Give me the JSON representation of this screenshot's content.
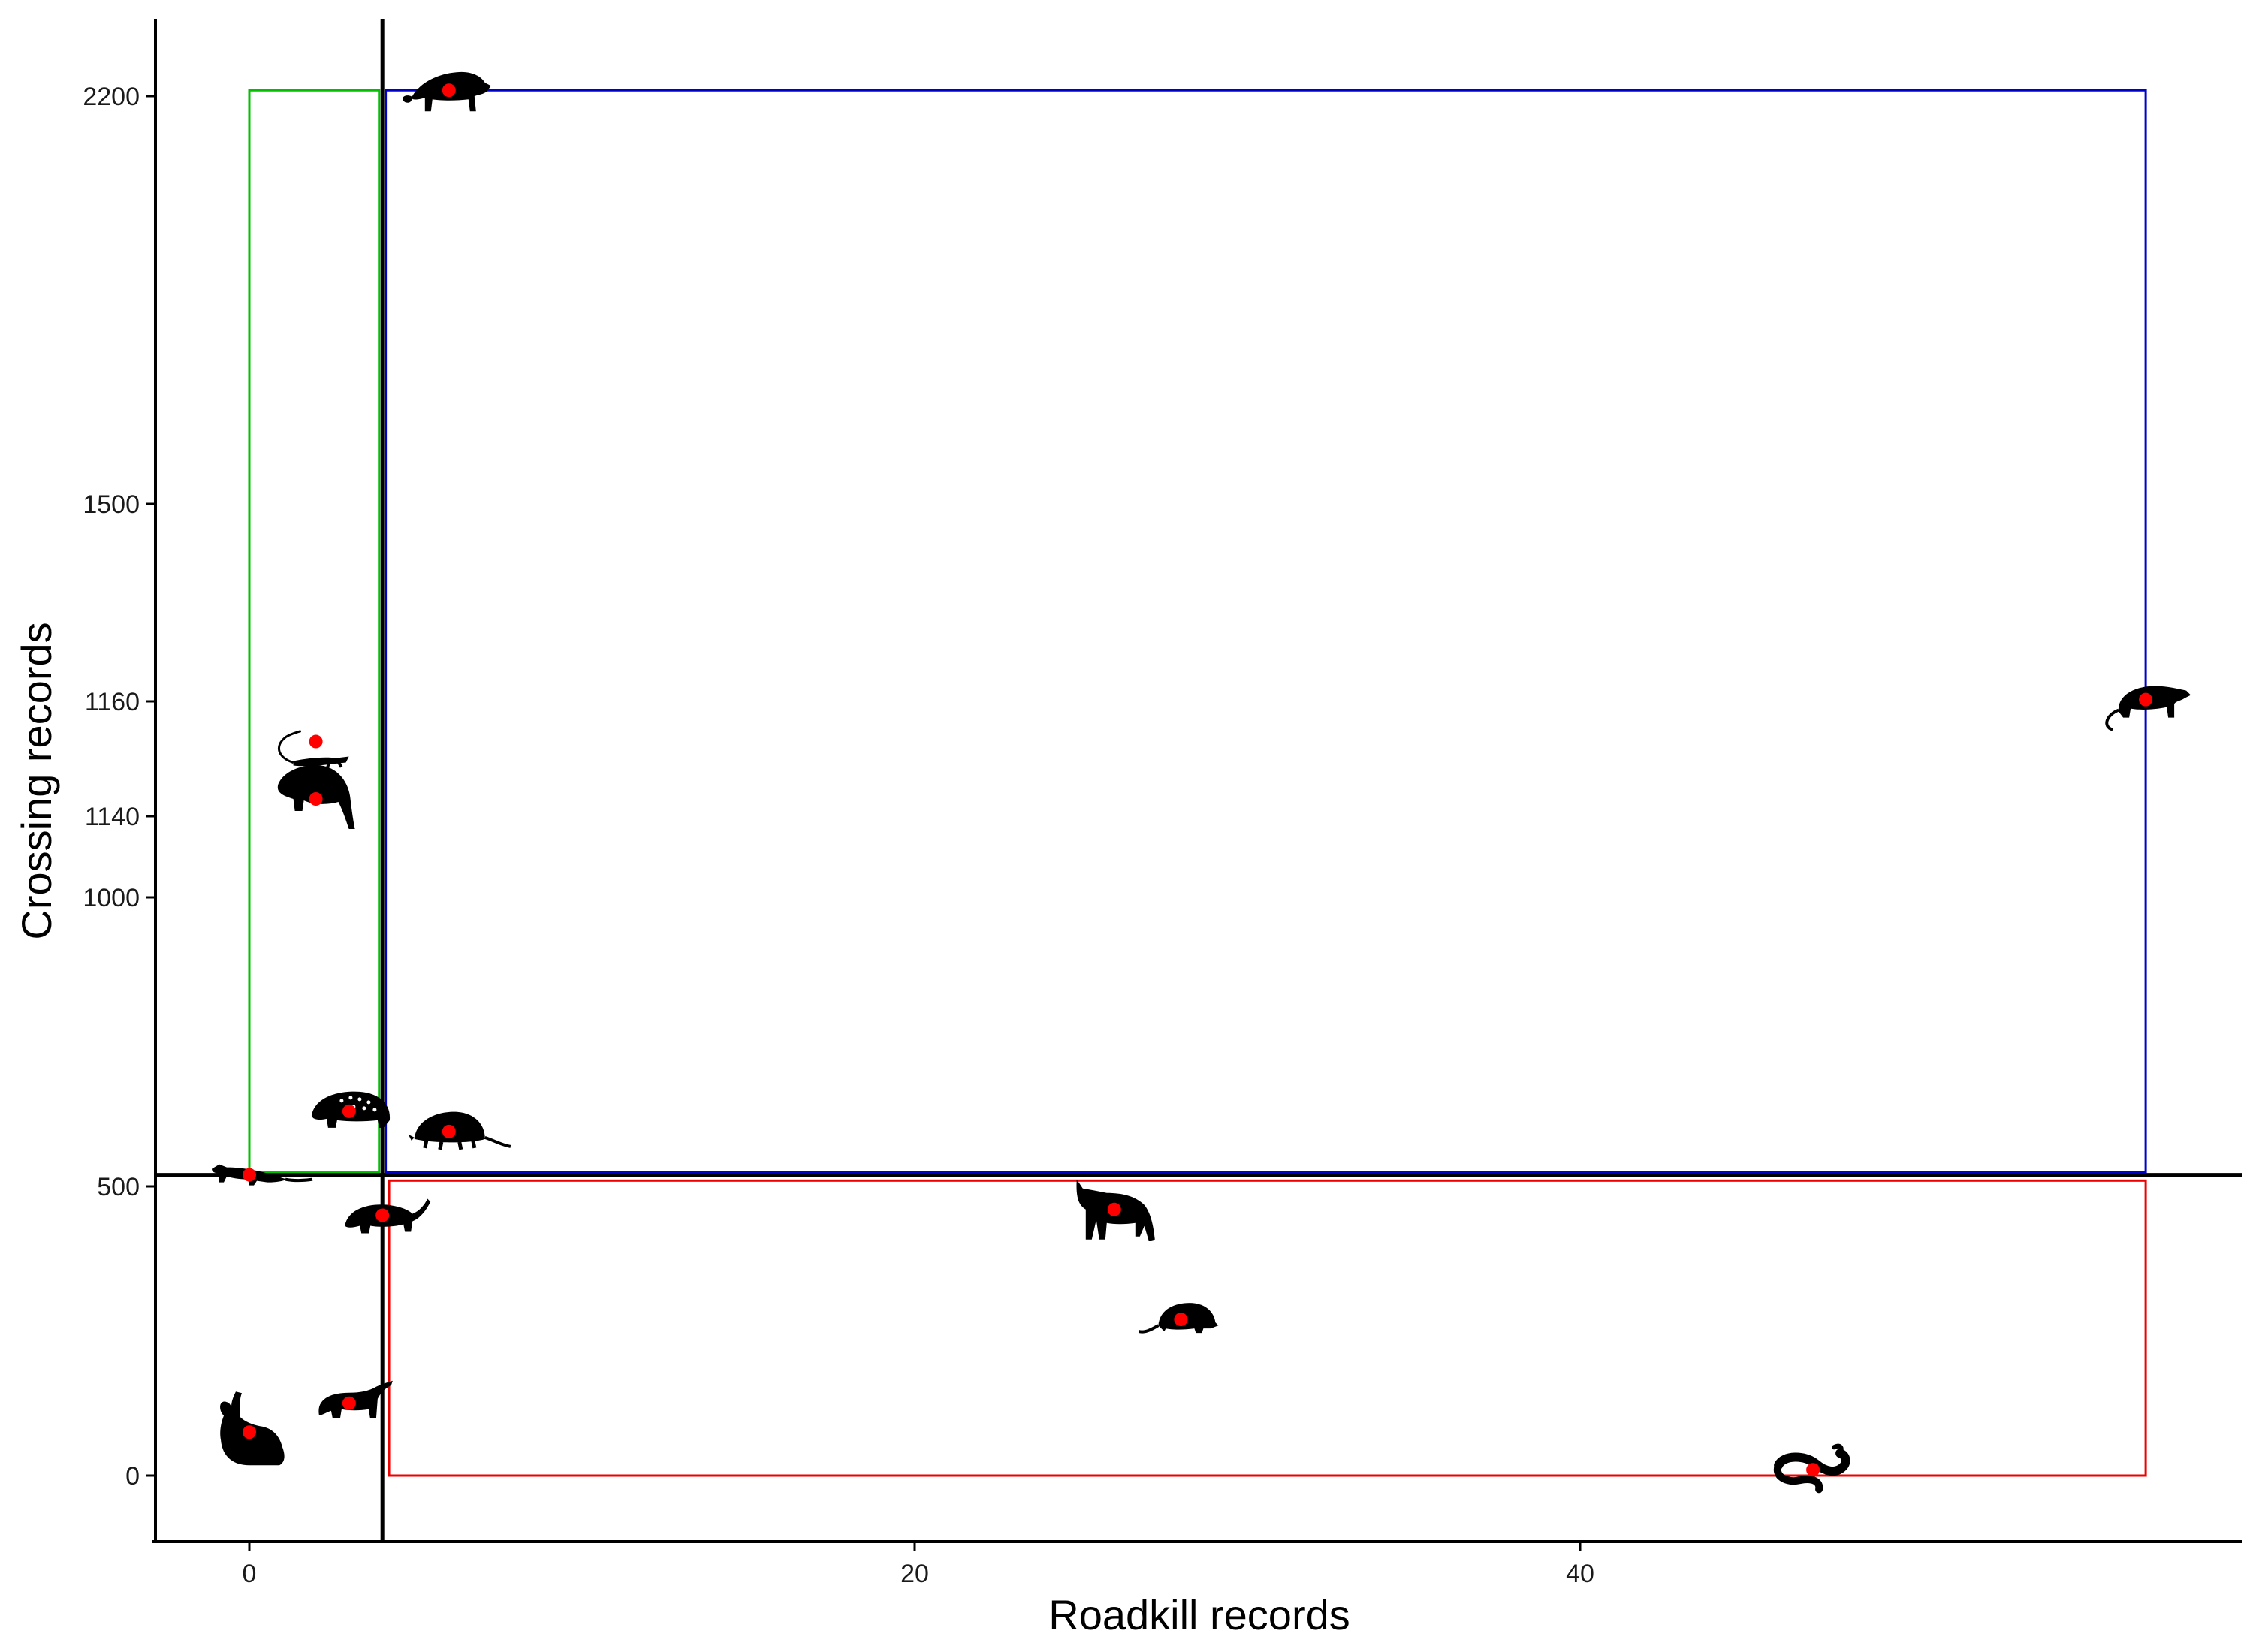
{
  "chart_data": {
    "type": "scatter",
    "title": "",
    "xlabel": "Roadkill records",
    "ylabel": "Crossing records",
    "xlim": [
      -1.4,
      59.8
    ],
    "x_ticks": [
      {
        "value": 0,
        "label": "0"
      },
      {
        "value": 20,
        "label": "20"
      },
      {
        "value": 40,
        "label": "40"
      }
    ],
    "y_ticks": [
      {
        "value": 0,
        "label": "0"
      },
      {
        "value": 500,
        "label": "500"
      },
      {
        "value": 1000,
        "label": "1000"
      },
      {
        "value": 1140,
        "label": "1140"
      },
      {
        "value": 1160,
        "label": "1160"
      },
      {
        "value": 1500,
        "label": "1500"
      },
      {
        "value": 2200,
        "label": "2200"
      }
    ],
    "y_scale_note": "piecewise: 0-500 linear, 500-1140 linear, 1140-1160 expanded, 1160-1500 linear, 1500-2200 compressed",
    "grid": false,
    "reference_lines": {
      "x": 4,
      "y": 520
    },
    "quadrants": [
      {
        "color": "#00c000",
        "x": [
          0,
          3.9
        ],
        "y": [
          525,
          2210
        ]
      },
      {
        "color": "#0000cc",
        "x": [
          4.1,
          57
        ],
        "y": [
          525,
          2210
        ]
      },
      {
        "color": "#ee0000",
        "x": [
          4.2,
          57
        ],
        "y": [
          0,
          510
        ]
      }
    ],
    "points": [
      {
        "x": 6,
        "y": 2210,
        "icon": "raccoon-silhouette-icon"
      },
      {
        "x": 57,
        "y": 1163,
        "icon": "opossum-silhouette-icon"
      },
      {
        "x": 2,
        "y": 1153,
        "icon": "lizard-silhouette-icon"
      },
      {
        "x": 2,
        "y": 1143,
        "icon": "otter-silhouette-icon"
      },
      {
        "x": 3,
        "y": 630,
        "icon": "paca-silhouette-icon"
      },
      {
        "x": 6,
        "y": 595,
        "icon": "armadillo-silhouette-icon"
      },
      {
        "x": 0,
        "y": 520,
        "icon": "weasel-silhouette-icon"
      },
      {
        "x": 4,
        "y": 450,
        "icon": "tayra-silhouette-icon"
      },
      {
        "x": 26,
        "y": 460,
        "icon": "fox-silhouette-icon"
      },
      {
        "x": 28,
        "y": 270,
        "icon": "rodent-silhouette-icon"
      },
      {
        "x": 3,
        "y": 125,
        "icon": "anteater-silhouette-icon"
      },
      {
        "x": 0,
        "y": 75,
        "icon": "rabbit-silhouette-icon"
      },
      {
        "x": 47,
        "y": 10,
        "icon": "snake-silhouette-icon"
      }
    ],
    "point_color": "#ff0000",
    "icon_color": "#000000"
  }
}
